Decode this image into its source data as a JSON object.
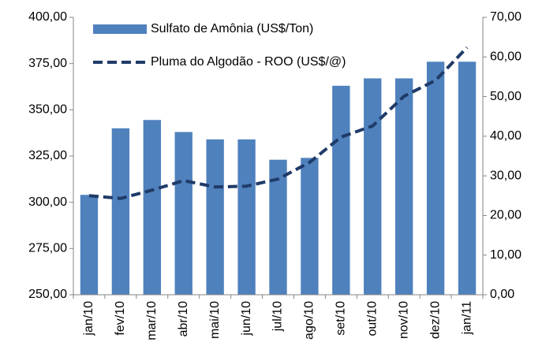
{
  "chart_data": {
    "type": "bar_line",
    "categories": [
      "jan/10",
      "fev/10",
      "mar/10",
      "abr/10",
      "mai/10",
      "jun/10",
      "jul/10",
      "ago/10",
      "set/10",
      "out/10",
      "nov/10",
      "dez/10",
      "jan/11"
    ],
    "series": [
      {
        "name": "Sulfato de Amônia (US$/Ton)",
        "type": "bar",
        "color": "#4f81bd",
        "values": [
          304,
          340,
          344.5,
          338,
          334,
          334,
          323,
          324,
          363,
          367,
          367,
          376,
          376
        ]
      },
      {
        "name": "Pluma do Algodão - ROO (US$/@)",
        "type": "line",
        "axis": "y2",
        "color": "#1f3b68",
        "dashed": true,
        "values": [
          25,
          24.3,
          26.4,
          28.8,
          27.2,
          27.4,
          29.2,
          33.4,
          39.8,
          42.6,
          50.1,
          54.1,
          62.4
        ]
      }
    ],
    "ylim": [
      250,
      400
    ],
    "yticks": [
      {
        "value": 250,
        "label": "250,00"
      },
      {
        "value": 275,
        "label": "275,00"
      },
      {
        "value": 300,
        "label": "300,00"
      },
      {
        "value": 325,
        "label": "325,00"
      },
      {
        "value": 350,
        "label": "350,00"
      },
      {
        "value": 375,
        "label": "375,00"
      },
      {
        "value": 400,
        "label": "400,00"
      }
    ],
    "y2lim": [
      0,
      70
    ],
    "y2ticks": [
      {
        "value": 0,
        "label": "0,00"
      },
      {
        "value": 10,
        "label": "10,00"
      },
      {
        "value": 20,
        "label": "20,00"
      },
      {
        "value": 30,
        "label": "30,00"
      },
      {
        "value": 40,
        "label": "40,00"
      },
      {
        "value": 50,
        "label": "50,00"
      },
      {
        "value": 60,
        "label": "60,00"
      },
      {
        "value": 70,
        "label": "70,00"
      }
    ],
    "legend": "upper left",
    "grid": false
  }
}
